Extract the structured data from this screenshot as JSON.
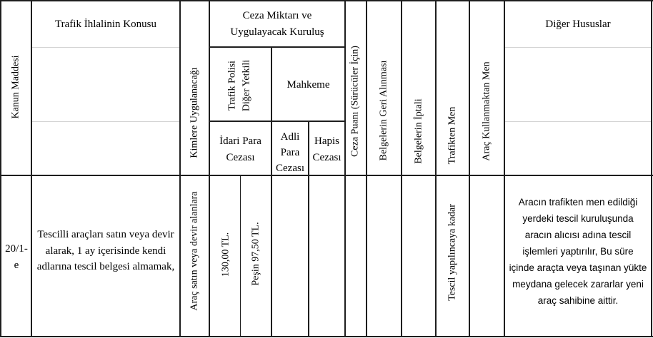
{
  "headers": {
    "kanun_maddesi": "Kanun Maddesi",
    "ihlal_konusu": "Trafik İhlalinin Konusu",
    "kimlere": "Kimlere Uygulanacağı",
    "ceza_miktari_line1": "Ceza Miktarı ve",
    "ceza_miktari_line2": "Uygulayacak Kuruluş",
    "trafik_polisi_line1": "Trafik Polisi",
    "trafik_polisi_line2": "Diğer Yetkili",
    "mahkeme": "Mahkeme",
    "idari_para_line1": "İdari Para",
    "idari_para_line2": "Cezası",
    "adli_para_line1": "Adli",
    "adli_para_line2": "Para",
    "adli_para_line3": "Cezası",
    "hapis_line1": "Hapis",
    "hapis_line2": "Cezası",
    "ceza_puani": "Ceza Puanı (Sürücüler İçin)",
    "belgelerin_geri": "Belgelerin Geri Alınması",
    "belgelerin_iptali": "Belgelerin İptali",
    "trafikten_men": "Trafikten Men",
    "arac_kullanmaktan_men": "Araç Kullanmaktan Men",
    "diger_hususlar": "Diğer Hususlar"
  },
  "row": {
    "madde_line1": "20/1-",
    "madde_line2": "e",
    "konu": "Tescilli araçları satın veya devir alarak, 1 ay içerisinde kendi adlarına tescil belgesi almamak,",
    "kimlere": "Araç satın veya devir alanlara",
    "idari_para_1": "130,00 TL.",
    "idari_para_2": "Peşin 97,50 TL.",
    "trafikten_men": "Tescil yapılıncaya kadar",
    "diger": "Aracın trafikten men edildiği yerdeki tescil kuruluşunda aracın alıcısı adına tescil işlemleri yaptırılır, Bu süre içinde araçta veya taşınan yükte meydana gelecek zararlar yeni araç sahibine aittir."
  }
}
